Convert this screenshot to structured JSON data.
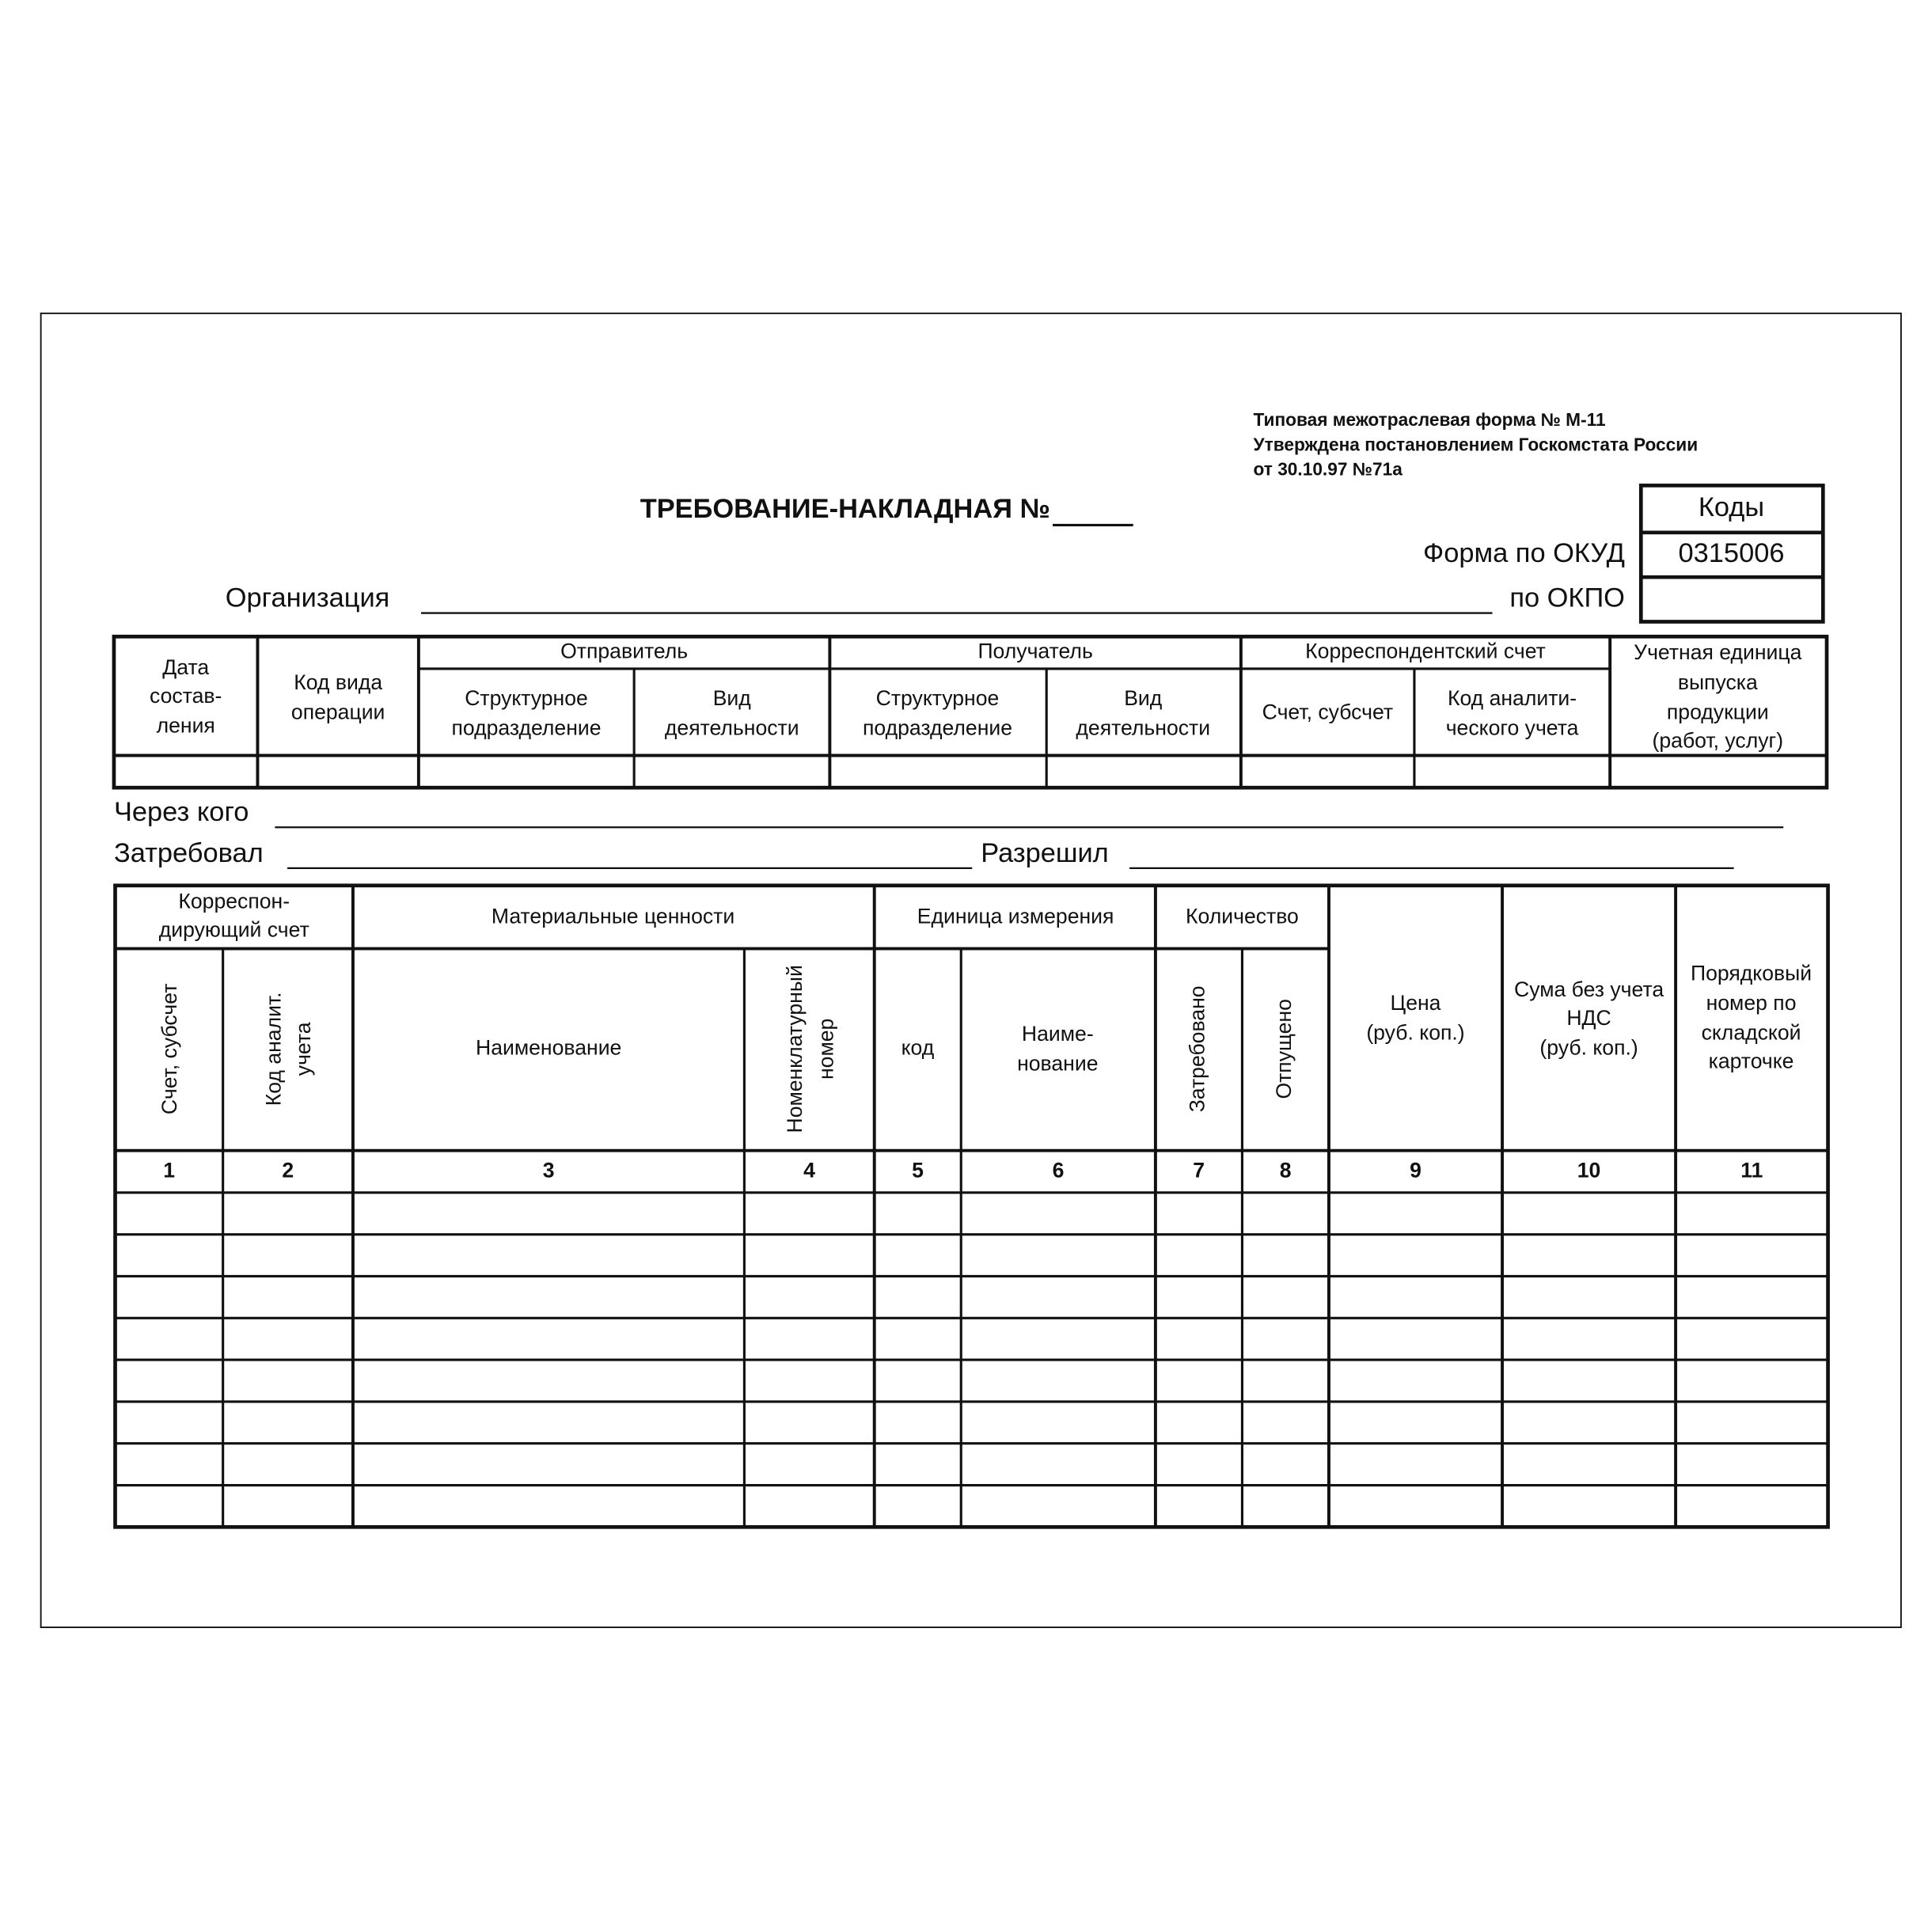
{
  "header": {
    "form_note": [
      "Типовая межотраслевая форма № М-11",
      "Утверждена постановлением Госкомстата России",
      "от 30.10.97 №71а"
    ],
    "title": "ТРЕБОВАНИЕ-НАКЛАДНАЯ №"
  },
  "codes": {
    "header": "Коды",
    "okud_label": "Форма по ОКУД",
    "okud": "0315006",
    "okpo_label": "по ОКПО"
  },
  "organization_label": "Организация",
  "table1": {
    "cells": [
      {
        "lines": [
          "Дата",
          "состав-",
          "ления"
        ]
      },
      {
        "lines": [
          "Код вида",
          "операции"
        ]
      },
      {
        "lines": [
          "Отправитель"
        ]
      },
      {
        "lines": [
          "Структурное",
          "подразделение"
        ]
      },
      {
        "lines": [
          "Вид",
          "деятельности"
        ]
      },
      {
        "lines": [
          "Получатель"
        ]
      },
      {
        "lines": [
          "Структурное",
          "подразделение"
        ]
      },
      {
        "lines": [
          "Вид",
          "деятельности"
        ]
      },
      {
        "lines": [
          "Корреспондентский счет"
        ]
      },
      {
        "lines": [
          "Счет, субсчет"
        ]
      },
      {
        "lines": [
          "Код аналити-",
          "ческого учета"
        ]
      },
      {
        "lines": [
          "Учетная единица",
          "выпуска",
          "продукции",
          "(работ, услуг)"
        ]
      }
    ]
  },
  "fields": {
    "through": "Через кого",
    "requested": "Затребовал",
    "approved": "Разрешил"
  },
  "table2": {
    "cells": [
      {
        "lines": [
          "Корреспон-",
          "дирующий счет"
        ]
      },
      {
        "lines": [
          "Материальные ценности"
        ]
      },
      {
        "lines": [
          "Единица измерения"
        ]
      },
      {
        "lines": [
          "Количество"
        ]
      },
      {
        "lines": [
          "Цена",
          "(руб. коп.)"
        ]
      },
      {
        "lines": [
          "Сума без учета",
          "НДС",
          "(руб. коп.)"
        ]
      },
      {
        "lines": [
          "Порядковый",
          "номер по",
          "складской",
          "карточке"
        ]
      },
      {
        "lines": [
          "Счет, субсчет"
        ]
      },
      {
        "lines": [
          "Код аналит.",
          "учета"
        ]
      },
      {
        "lines": [
          "Наименование"
        ]
      },
      {
        "lines": [
          "Номенклатурный",
          "номер"
        ]
      },
      {
        "lines": [
          "код"
        ]
      },
      {
        "lines": [
          "Наиме-",
          "нование"
        ]
      },
      {
        "lines": [
          "Затребовано"
        ]
      },
      {
        "lines": [
          "Отпущено"
        ]
      }
    ],
    "column_numbers": [
      "1",
      "2",
      "3",
      "4",
      "5",
      "6",
      "7",
      "8",
      "9",
      "10",
      "11"
    ]
  }
}
